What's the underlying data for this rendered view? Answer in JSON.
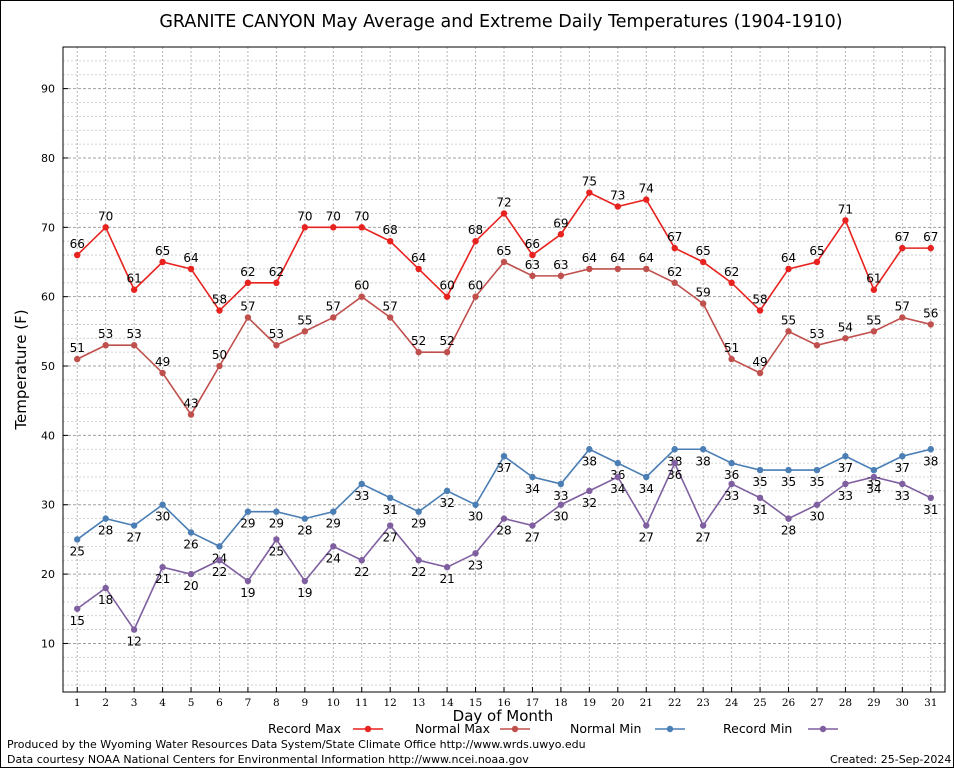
{
  "footer": {
    "produced_by": "Produced by the Wyoming Water Resources Data System/State Climate Office http://www.wrds.uwyo.edu",
    "courtesy": "Data courtesy NOAA National Centers for Environmental Information http://www.ncei.noaa.gov",
    "created": "Created:  25-Sep-2024"
  },
  "chart_data": {
    "type": "line",
    "title": "GRANITE CANYON May Average and Extreme Daily Temperatures (1904-1910)",
    "xlabel": "Day of Month",
    "ylabel": "Temperature (F)",
    "ylim": [
      3,
      96
    ],
    "yticks": [
      10,
      20,
      30,
      40,
      50,
      60,
      70,
      80,
      90
    ],
    "grid": true,
    "legend_position": "bottom",
    "x": [
      1,
      2,
      3,
      4,
      5,
      6,
      7,
      8,
      9,
      10,
      11,
      12,
      13,
      14,
      15,
      16,
      17,
      18,
      19,
      20,
      21,
      22,
      23,
      24,
      25,
      26,
      27,
      28,
      29,
      30,
      31
    ],
    "series": [
      {
        "name": "Record Max",
        "color": "#e8221e",
        "label_pos": "above",
        "values": [
          66,
          70,
          61,
          65,
          64,
          58,
          62,
          62,
          70,
          70,
          70,
          68,
          64,
          60,
          68,
          72,
          66,
          69,
          75,
          73,
          74,
          67,
          65,
          62,
          58,
          64,
          65,
          71,
          61,
          67,
          67
        ]
      },
      {
        "name": "Normal Max",
        "color": "#c0504d",
        "label_pos": "above",
        "values": [
          51,
          53,
          53,
          49,
          43,
          50,
          57,
          53,
          55,
          57,
          60,
          57,
          52,
          52,
          60,
          65,
          63,
          63,
          64,
          64,
          64,
          62,
          59,
          51,
          49,
          55,
          53,
          54,
          55,
          57,
          56
        ]
      },
      {
        "name": "Normal Min",
        "color": "#4a7eb5",
        "label_pos": "below",
        "values": [
          25,
          28,
          27,
          30,
          26,
          24,
          29,
          29,
          28,
          29,
          33,
          31,
          29,
          32,
          30,
          37,
          34,
          33,
          38,
          36,
          34,
          38,
          38,
          36,
          35,
          35,
          35,
          37,
          35,
          37,
          38
        ]
      },
      {
        "name": "Record Min",
        "color": "#7f5fa0",
        "label_pos": "below",
        "values": [
          15,
          18,
          12,
          21,
          20,
          22,
          19,
          25,
          19,
          24,
          22,
          27,
          22,
          21,
          23,
          28,
          27,
          30,
          32,
          34,
          27,
          36,
          27,
          33,
          31,
          28,
          30,
          33,
          34,
          33,
          31
        ]
      }
    ]
  }
}
